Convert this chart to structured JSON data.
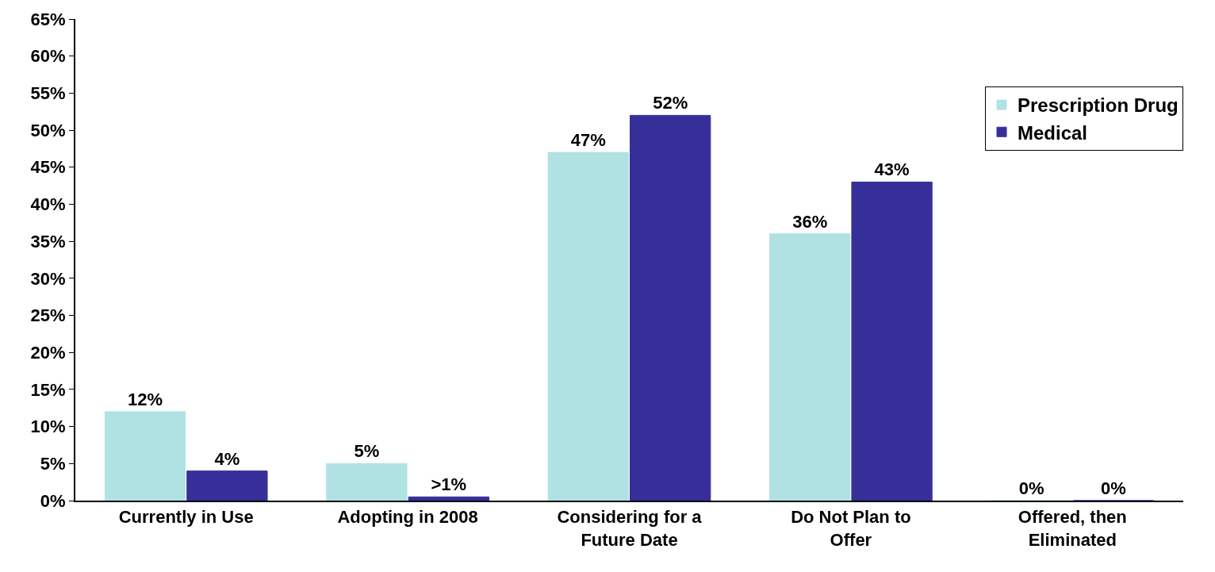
{
  "chart_data": {
    "type": "bar",
    "categories": [
      "Currently in Use",
      "Adopting in 2008",
      "Considering for a Future Date",
      "Do Not Plan to Offer",
      "Offered, then Eliminated"
    ],
    "series": [
      {
        "name": "Prescription Drug",
        "color": "#b0e2e4",
        "values": [
          12,
          5,
          47,
          36,
          0
        ],
        "value_labels": [
          "12%",
          "5%",
          "47%",
          "36%",
          "0%"
        ]
      },
      {
        "name": "Medical",
        "color": "#372f99",
        "values": [
          4,
          0.5,
          52,
          43,
          0
        ],
        "value_labels": [
          "4%",
          ">1%",
          "52%",
          "43%",
          "0%"
        ]
      }
    ],
    "ylim": [
      0,
      65
    ],
    "yticks": [
      {
        "value": 0,
        "label": "0%"
      },
      {
        "value": 5,
        "label": "5%"
      },
      {
        "value": 10,
        "label": "10%"
      },
      {
        "value": 15,
        "label": "15%"
      },
      {
        "value": 20,
        "label": "20%"
      },
      {
        "value": 25,
        "label": "25%"
      },
      {
        "value": 30,
        "label": "30%"
      },
      {
        "value": 35,
        "label": "35%"
      },
      {
        "value": 40,
        "label": "40%"
      },
      {
        "value": 45,
        "label": "45%"
      },
      {
        "value": 50,
        "label": "50%"
      },
      {
        "value": 55,
        "label": "55%"
      },
      {
        "value": 60,
        "label": "60%"
      },
      {
        "value": 65,
        "label": "65%"
      }
    ],
    "legend": "top right"
  }
}
